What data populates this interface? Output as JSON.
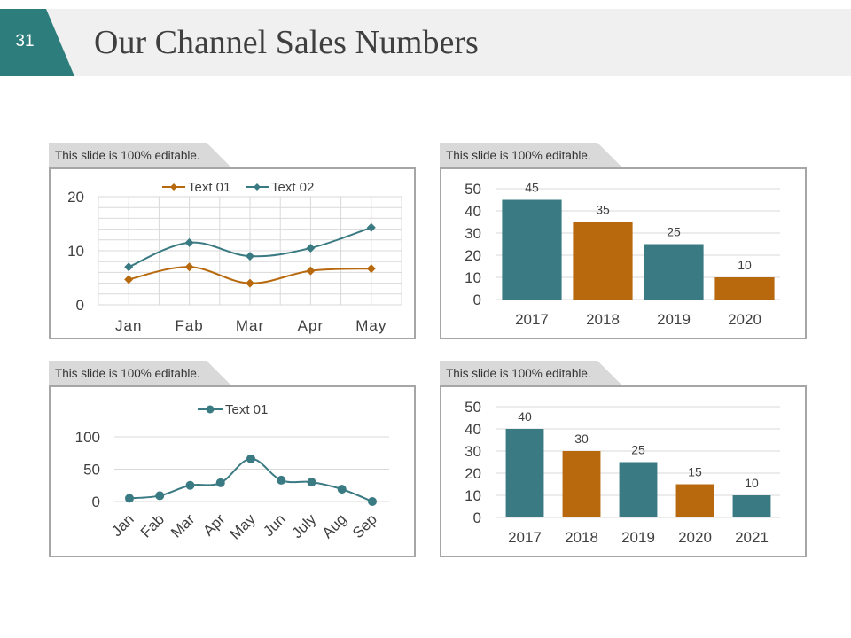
{
  "slide": {
    "number": "31",
    "title": "Our Channel Sales Numbers",
    "accent_color": "#2e7d7d",
    "header_bg": "#f0f0f0"
  },
  "panels": {
    "tab_label": "This slide is 100% editable."
  },
  "colors": {
    "teal": "#3a7a82",
    "orange": "#b8690e",
    "grid": "#d9d9d9",
    "text": "#404040"
  },
  "chart_data": [
    {
      "type": "line",
      "categories": [
        "Jan",
        "Fab",
        "Mar",
        "Apr",
        "May"
      ],
      "series": [
        {
          "name": "Text 01",
          "values": [
            4.7,
            7.0,
            4.0,
            6.3,
            6.7
          ],
          "color": "#b8690e"
        },
        {
          "name": "Text 02",
          "values": [
            7.0,
            11.5,
            9.0,
            10.5,
            14.3
          ],
          "color": "#3a7a82"
        }
      ],
      "yticks": [
        "0",
        "10",
        "20"
      ],
      "ylim": [
        0,
        20
      ],
      "grid": true,
      "legend": "top"
    },
    {
      "type": "bar",
      "categories": [
        "2017",
        "2018",
        "2019",
        "2020"
      ],
      "values": [
        45,
        35,
        25,
        10
      ],
      "data_labels": [
        "45",
        "35",
        "25",
        "10"
      ],
      "yticks": [
        "0",
        "10",
        "20",
        "30",
        "40",
        "50"
      ],
      "ylim": [
        0,
        50
      ]
    },
    {
      "type": "line",
      "categories": [
        "Jan",
        "Fab",
        "Mar",
        "Apr",
        "May",
        "Jun",
        "July",
        "Aug",
        "Sep"
      ],
      "series": [
        {
          "name": "Text 01",
          "values": [
            5,
            9,
            25,
            29,
            66,
            33,
            30,
            19,
            0
          ],
          "color": "#3a7a82"
        }
      ],
      "yticks": [
        "0",
        "50",
        "100"
      ],
      "ylim": [
        0,
        100
      ],
      "legend": "top"
    },
    {
      "type": "bar",
      "categories": [
        "2017",
        "2018",
        "2019",
        "2020",
        "2021"
      ],
      "values": [
        40,
        30,
        25,
        15,
        10
      ],
      "data_labels": [
        "40",
        "30",
        "25",
        "15",
        "10"
      ],
      "yticks": [
        "0",
        "10",
        "20",
        "30",
        "40",
        "50"
      ],
      "ylim": [
        0,
        50
      ]
    }
  ]
}
